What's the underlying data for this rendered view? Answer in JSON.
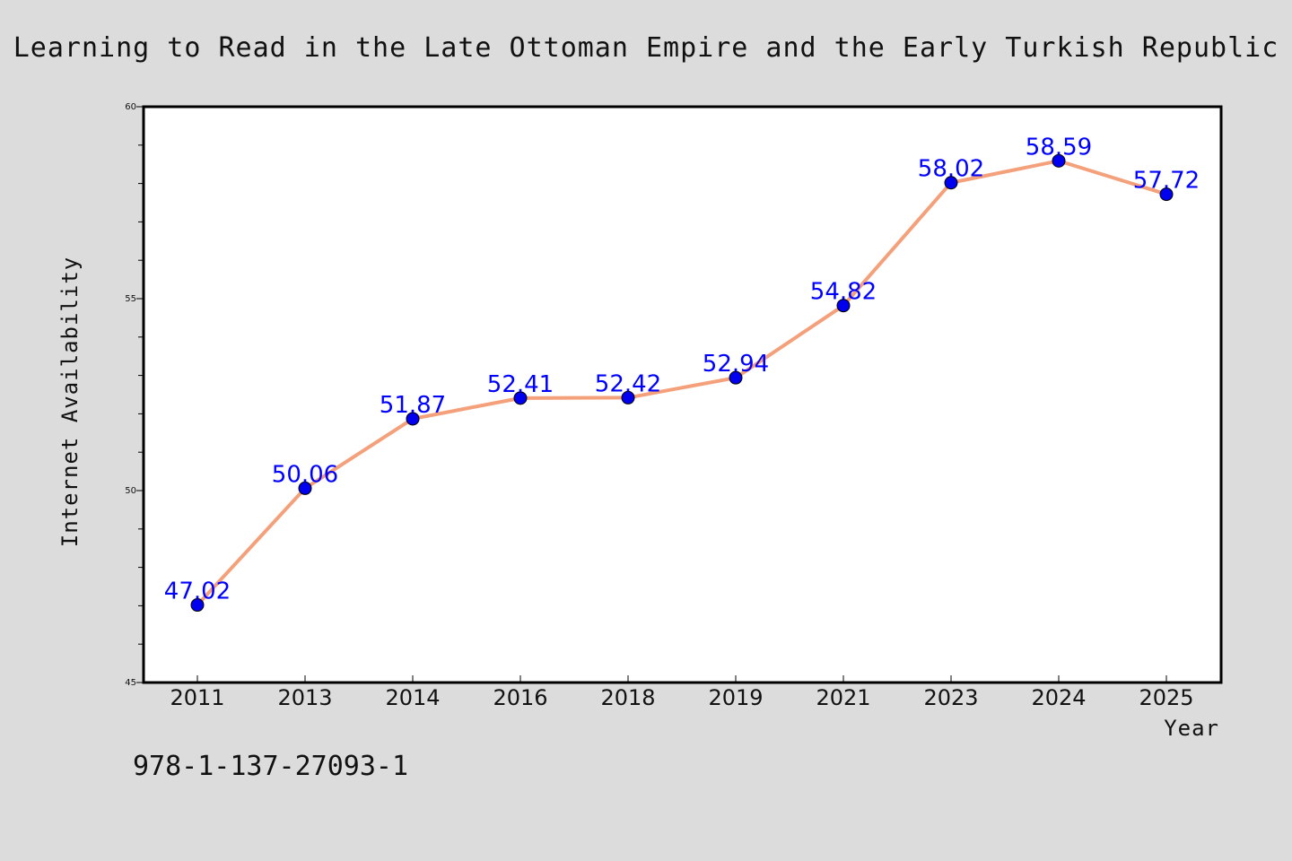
{
  "chart_data": {
    "type": "line",
    "title": "Learning to Read in the Late Ottoman Empire and the Early Turkish Republic",
    "xlabel": "Year",
    "ylabel": "Internet Availability",
    "categories": [
      "2011",
      "2013",
      "2014",
      "2016",
      "2018",
      "2019",
      "2021",
      "2023",
      "2024",
      "2025"
    ],
    "series": [
      {
        "values": [
          47.02,
          50.06,
          51.87,
          52.41,
          52.42,
          52.94,
          54.82,
          58.02,
          58.59,
          57.72
        ]
      }
    ],
    "data_labels": [
      "47.02",
      "50.06",
      "51.87",
      "52.41",
      "52.42",
      "52.94",
      "54.82",
      "58.02",
      "58.59",
      "57.72"
    ],
    "ylim": [
      45,
      60
    ],
    "yticks": [
      "45",
      "50",
      "55",
      "60"
    ],
    "grid": false,
    "colors": {
      "line": "#f4a07a",
      "marker": "#0000ee",
      "label": "#0000ff",
      "background": "#dcdcdc",
      "plot_background": "#ffffff"
    }
  },
  "footer": {
    "isbn": "978-1-137-27093-1"
  }
}
